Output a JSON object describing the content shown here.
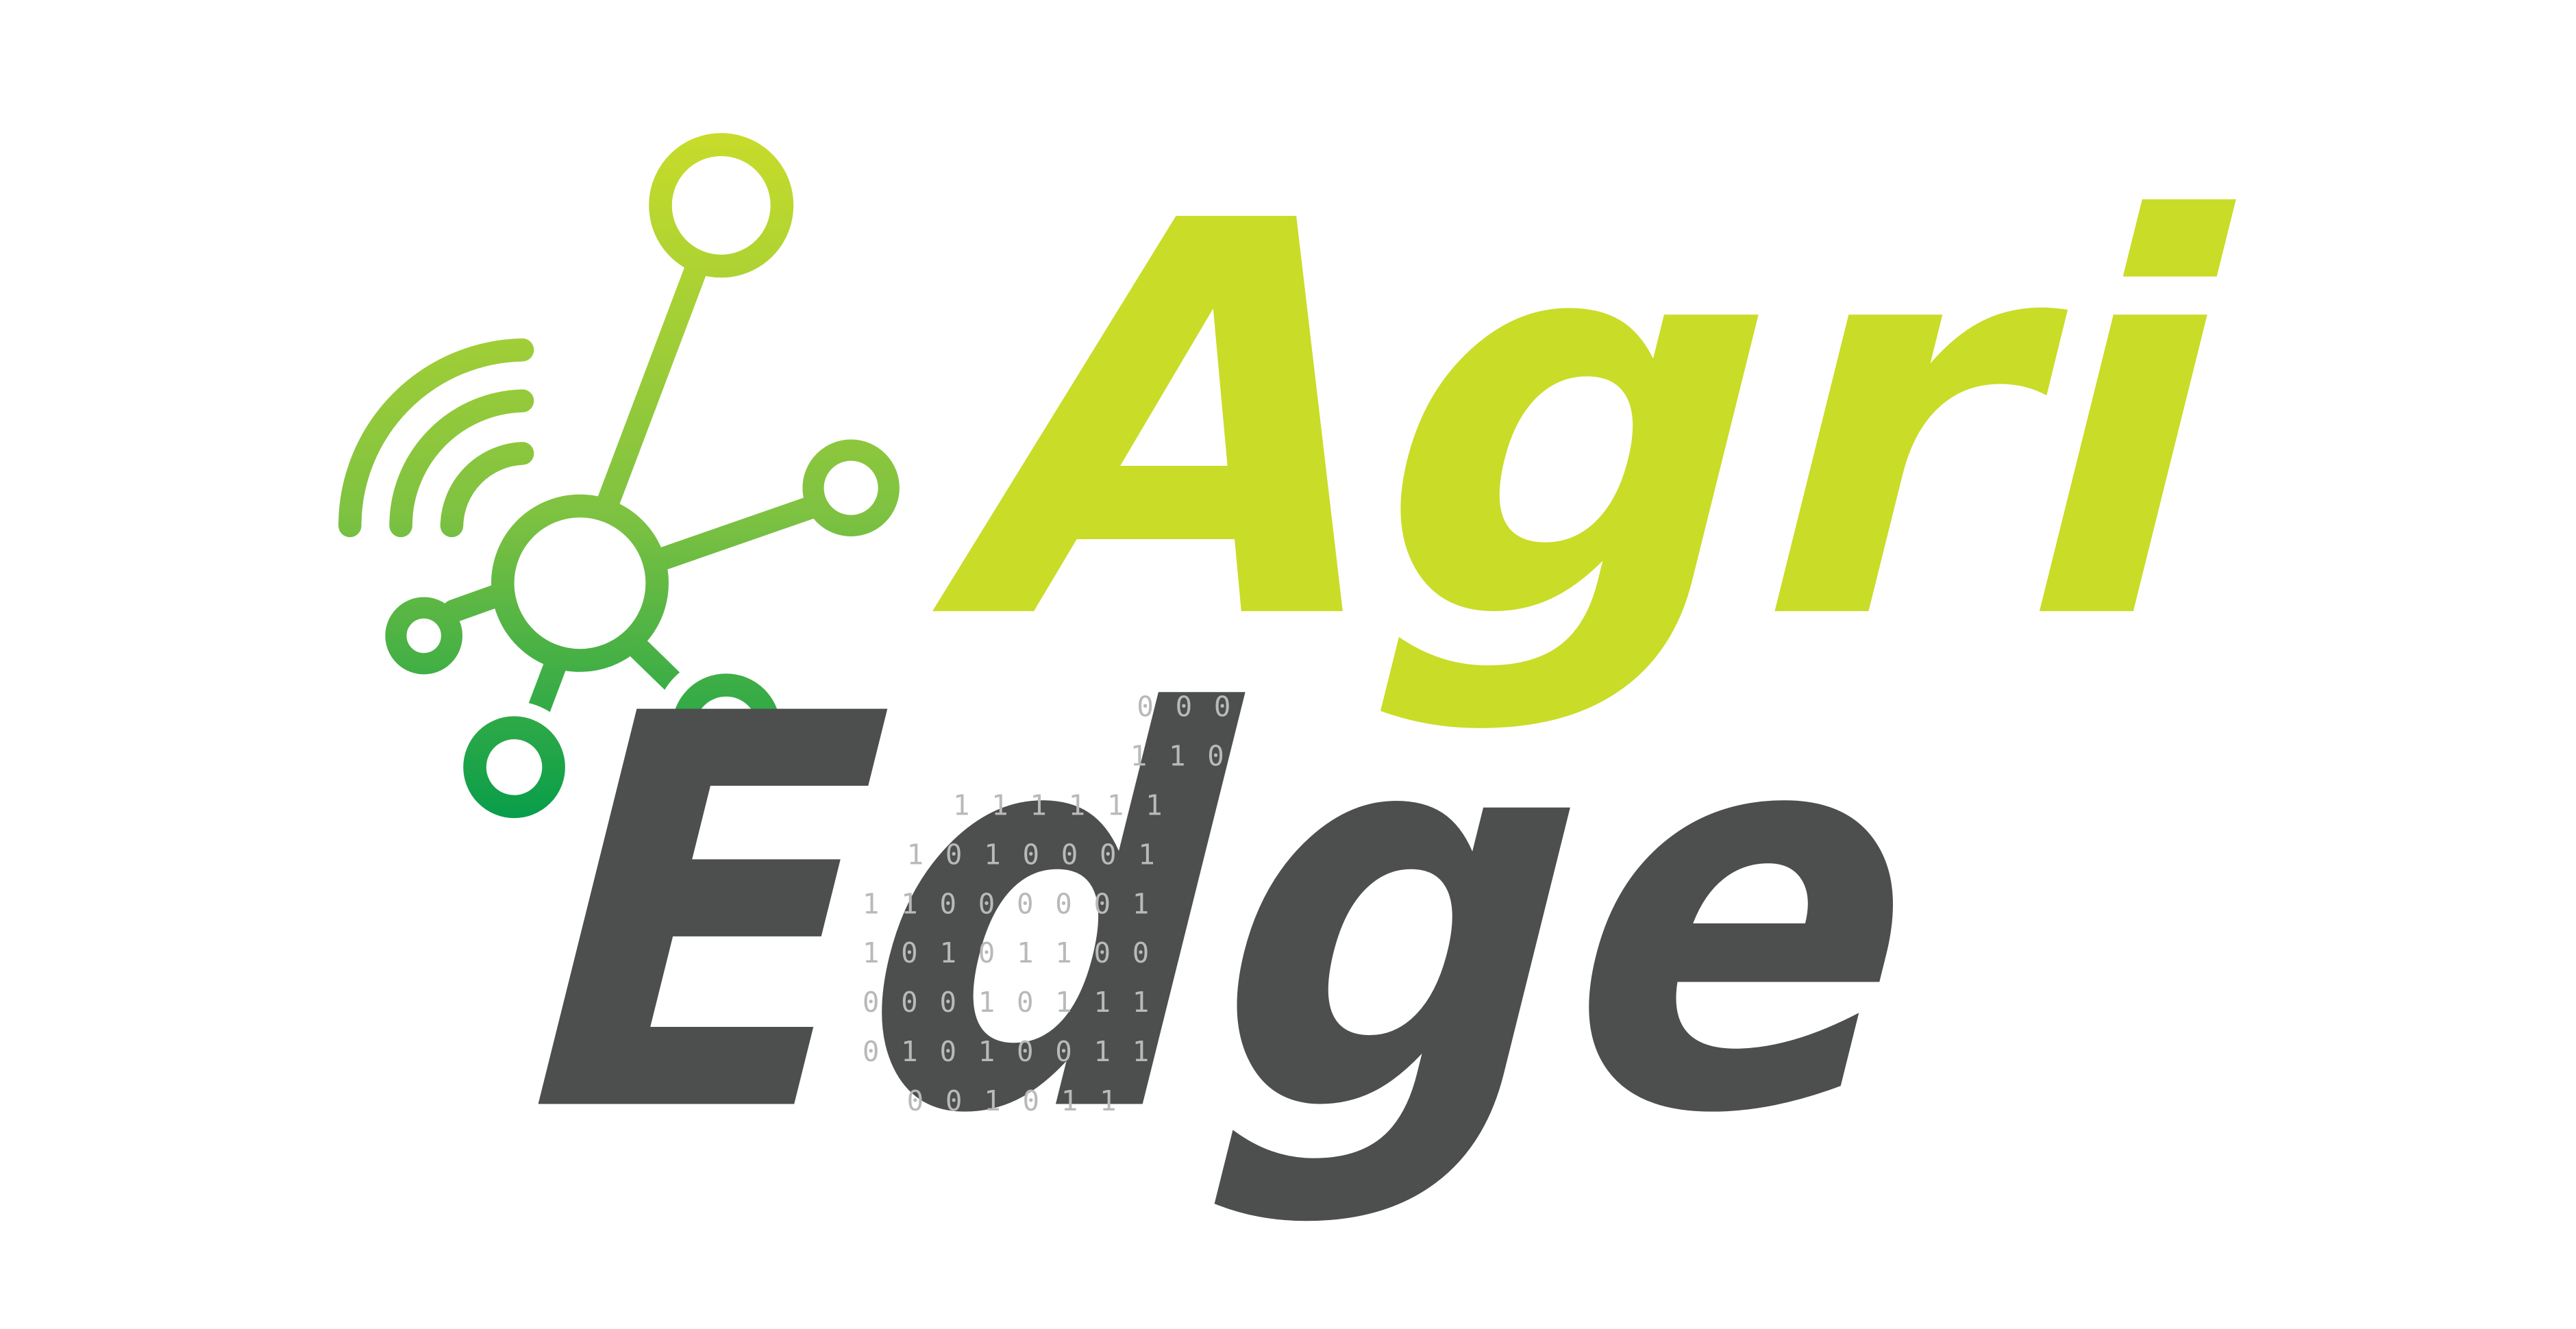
{
  "logo": {
    "line1": "Agri",
    "line2": "Edge",
    "binary_rows": [
      "0 0 0",
      "1 1 0",
      "1 1 1 1 1 1",
      "1 0 1 0 0 0 1",
      "1 1 0 0 0 0 0 1",
      "1 0 1 0 1 1 0 0",
      "0 0 0 1 0 1 1 1",
      "0 1 0 1 0 0 1 1",
      "0 0 1 0 1 1"
    ]
  }
}
